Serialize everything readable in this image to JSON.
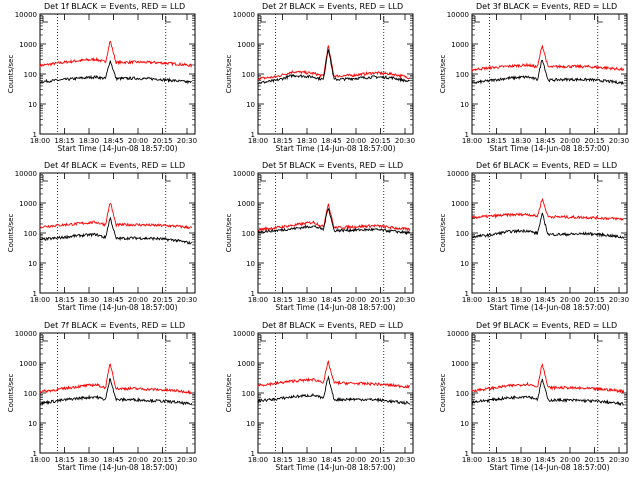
{
  "colors": {
    "black_series": "#000000",
    "red_series": "#ff0000",
    "background": "#ffffff",
    "axes": "#000000"
  },
  "chart_data": [
    {
      "type": "line",
      "title": "Det 1f BLACK = Events, RED = LLD",
      "xlabel": "Start Time (14-Jun-08 18:57:00)",
      "ylabel": "Counts/sec",
      "y_scale": "log",
      "ylim": [
        1,
        10000
      ],
      "xlim": [
        18.0,
        20.65
      ],
      "x_ticks": [
        "18:00",
        "18:15",
        "18:30",
        "18:45",
        "20:00",
        "20:15",
        "20:30"
      ],
      "y_ticks": [
        "1",
        "10",
        "100",
        "1000",
        "10000"
      ],
      "dotted_vlines": [
        18.3,
        20.15
      ],
      "grid": false,
      "series": [
        {
          "name": "BLACK",
          "color": "#000000",
          "x": [
            18.0,
            18.3,
            18.6,
            18.95,
            19.12,
            19.2,
            19.3,
            19.6,
            20.0,
            20.3,
            20.6
          ],
          "y": [
            55,
            62,
            70,
            80,
            70,
            290,
            70,
            72,
            68,
            60,
            52
          ]
        },
        {
          "name": "RED",
          "color": "#ff0000",
          "x": [
            18.0,
            18.3,
            18.6,
            18.95,
            19.12,
            19.2,
            19.3,
            19.6,
            20.0,
            20.3,
            20.6
          ],
          "y": [
            190,
            230,
            270,
            310,
            250,
            1300,
            240,
            250,
            240,
            220,
            190
          ]
        }
      ]
    },
    {
      "type": "line",
      "title": "Det 2f BLACK = Events, RED = LLD",
      "xlabel": "Start Time (14-Jun-08 18:57:00)",
      "ylabel": "Counts/sec",
      "y_scale": "log",
      "ylim": [
        1,
        10000
      ],
      "xlim": [
        18.0,
        20.65
      ],
      "x_ticks": [
        "18:00",
        "18:15",
        "18:30",
        "18:45",
        "20:00",
        "20:15",
        "20:30"
      ],
      "y_ticks": [
        "1",
        "10",
        "100",
        "1000",
        "10000"
      ],
      "dotted_vlines": [
        18.3,
        20.15
      ],
      "grid": false,
      "series": [
        {
          "name": "BLACK",
          "color": "#000000",
          "x": [
            18.0,
            18.3,
            18.6,
            18.95,
            19.12,
            19.2,
            19.3,
            19.6,
            20.0,
            20.3,
            20.6
          ],
          "y": [
            50,
            60,
            90,
            80,
            65,
            750,
            65,
            70,
            80,
            75,
            55
          ]
        },
        {
          "name": "RED",
          "color": "#ff0000",
          "x": [
            18.0,
            18.3,
            18.6,
            18.95,
            19.12,
            19.2,
            19.3,
            19.6,
            20.0,
            20.3,
            20.6
          ],
          "y": [
            70,
            80,
            120,
            105,
            85,
            900,
            85,
            90,
            110,
            100,
            75
          ]
        }
      ]
    },
    {
      "type": "line",
      "title": "Det 3f BLACK = Events, RED = LLD",
      "xlabel": "Start Time (14-Jun-08 18:57:00)",
      "ylabel": "Counts/sec",
      "y_scale": "log",
      "ylim": [
        1,
        10000
      ],
      "xlim": [
        18.0,
        20.65
      ],
      "x_ticks": [
        "18:00",
        "18:15",
        "18:30",
        "18:45",
        "20:00",
        "20:15",
        "20:30"
      ],
      "y_ticks": [
        "1",
        "10",
        "100",
        "1000",
        "10000"
      ],
      "dotted_vlines": [
        18.3,
        20.15
      ],
      "grid": false,
      "series": [
        {
          "name": "BLACK",
          "color": "#000000",
          "x": [
            18.0,
            18.3,
            18.6,
            18.95,
            19.12,
            19.2,
            19.3,
            19.6,
            20.0,
            20.3,
            20.6
          ],
          "y": [
            50,
            60,
            72,
            80,
            65,
            330,
            62,
            66,
            65,
            58,
            50
          ]
        },
        {
          "name": "RED",
          "color": "#ff0000",
          "x": [
            18.0,
            18.3,
            18.6,
            18.95,
            19.12,
            19.2,
            19.3,
            19.6,
            20.0,
            20.3,
            20.6
          ],
          "y": [
            140,
            160,
            180,
            200,
            170,
            950,
            170,
            180,
            175,
            160,
            140
          ]
        }
      ]
    },
    {
      "type": "line",
      "title": "Det 4f BLACK = Events, RED = LLD",
      "xlabel": "Start Time (14-Jun-08 18:57:00)",
      "ylabel": "Counts/sec",
      "y_scale": "log",
      "ylim": [
        1,
        10000
      ],
      "xlim": [
        18.0,
        20.65
      ],
      "x_ticks": [
        "18:00",
        "18:15",
        "18:30",
        "18:45",
        "20:00",
        "20:15",
        "20:30"
      ],
      "y_ticks": [
        "1",
        "10",
        "100",
        "1000",
        "10000"
      ],
      "dotted_vlines": [
        18.3,
        20.15
      ],
      "grid": false,
      "series": [
        {
          "name": "BLACK",
          "color": "#000000",
          "x": [
            18.0,
            18.3,
            18.6,
            18.95,
            19.12,
            19.2,
            19.3,
            19.6,
            20.0,
            20.3,
            20.6
          ],
          "y": [
            60,
            68,
            80,
            90,
            70,
            330,
            65,
            68,
            65,
            58,
            45
          ]
        },
        {
          "name": "RED",
          "color": "#ff0000",
          "x": [
            18.0,
            18.3,
            18.6,
            18.95,
            19.12,
            19.2,
            19.3,
            19.6,
            20.0,
            20.3,
            20.6
          ],
          "y": [
            160,
            180,
            200,
            230,
            190,
            1100,
            185,
            190,
            180,
            170,
            150
          ]
        }
      ]
    },
    {
      "type": "line",
      "title": "Det 5f BLACK = Events, RED = LLD",
      "xlabel": "Start Time (14-Jun-08 18:57:00)",
      "ylabel": "Counts/sec",
      "y_scale": "log",
      "ylim": [
        1,
        10000
      ],
      "xlim": [
        18.0,
        20.65
      ],
      "x_ticks": [
        "18:00",
        "18:15",
        "18:30",
        "18:45",
        "20:00",
        "20:15",
        "20:30"
      ],
      "y_ticks": [
        "1",
        "10",
        "100",
        "1000",
        "10000"
      ],
      "dotted_vlines": [
        18.3,
        20.15
      ],
      "grid": false,
      "series": [
        {
          "name": "BLACK",
          "color": "#000000",
          "x": [
            18.0,
            18.3,
            18.6,
            18.95,
            19.12,
            19.2,
            19.3,
            19.6,
            20.0,
            20.3,
            20.6
          ],
          "y": [
            110,
            120,
            140,
            170,
            130,
            750,
            120,
            125,
            130,
            115,
            100
          ]
        },
        {
          "name": "RED",
          "color": "#ff0000",
          "x": [
            18.0,
            18.3,
            18.6,
            18.95,
            19.12,
            19.2,
            19.3,
            19.6,
            20.0,
            20.3,
            20.6
          ],
          "y": [
            130,
            150,
            180,
            230,
            160,
            1000,
            150,
            160,
            175,
            150,
            130
          ]
        }
      ]
    },
    {
      "type": "line",
      "title": "Det 6f BLACK = Events, RED = LLD",
      "xlabel": "Start Time (14-Jun-08 18:57:00)",
      "ylabel": "Counts/sec",
      "y_scale": "log",
      "ylim": [
        1,
        10000
      ],
      "xlim": [
        18.0,
        20.65
      ],
      "x_ticks": [
        "18:00",
        "18:15",
        "18:30",
        "18:45",
        "20:00",
        "20:15",
        "20:30"
      ],
      "y_ticks": [
        "1",
        "10",
        "100",
        "1000",
        "10000"
      ],
      "dotted_vlines": [
        18.3,
        20.15
      ],
      "grid": false,
      "series": [
        {
          "name": "BLACK",
          "color": "#000000",
          "x": [
            18.0,
            18.3,
            18.6,
            18.95,
            19.12,
            19.2,
            19.3,
            19.6,
            20.0,
            20.3,
            20.6
          ],
          "y": [
            75,
            85,
            110,
            120,
            95,
            450,
            90,
            90,
            95,
            85,
            70
          ]
        },
        {
          "name": "RED",
          "color": "#ff0000",
          "x": [
            18.0,
            18.3,
            18.6,
            18.95,
            19.12,
            19.2,
            19.3,
            19.6,
            20.0,
            20.3,
            20.6
          ],
          "y": [
            330,
            360,
            400,
            420,
            360,
            1400,
            350,
            340,
            330,
            310,
            290
          ]
        }
      ]
    },
    {
      "type": "line",
      "title": "Det 7f BLACK = Events, RED = LLD",
      "xlabel": "Start Time (14-Jun-08 18:57:00)",
      "ylabel": "Counts/sec",
      "y_scale": "log",
      "ylim": [
        1,
        10000
      ],
      "xlim": [
        18.0,
        20.65
      ],
      "x_ticks": [
        "18:00",
        "18:15",
        "18:30",
        "18:45",
        "20:00",
        "20:15",
        "20:30"
      ],
      "y_ticks": [
        "1",
        "10",
        "100",
        "1000",
        "10000"
      ],
      "dotted_vlines": [
        18.3,
        20.15
      ],
      "grid": false,
      "series": [
        {
          "name": "BLACK",
          "color": "#000000",
          "x": [
            18.0,
            18.3,
            18.6,
            18.95,
            19.12,
            19.2,
            19.3,
            19.6,
            20.0,
            20.3,
            20.6
          ],
          "y": [
            45,
            55,
            65,
            75,
            60,
            320,
            60,
            60,
            55,
            50,
            42
          ]
        },
        {
          "name": "RED",
          "color": "#ff0000",
          "x": [
            18.0,
            18.3,
            18.6,
            18.95,
            19.12,
            19.2,
            19.3,
            19.6,
            20.0,
            20.3,
            20.6
          ],
          "y": [
            110,
            130,
            160,
            190,
            150,
            1000,
            140,
            140,
            130,
            120,
            105
          ]
        }
      ]
    },
    {
      "type": "line",
      "title": "Det 8f BLACK = Events, RED = LLD",
      "xlabel": "Start Time (14-Jun-08 18:57:00)",
      "ylabel": "Counts/sec",
      "y_scale": "log",
      "ylim": [
        1,
        10000
      ],
      "xlim": [
        18.0,
        20.65
      ],
      "x_ticks": [
        "18:00",
        "18:15",
        "18:30",
        "18:45",
        "20:00",
        "20:15",
        "20:30"
      ],
      "y_ticks": [
        "1",
        "10",
        "100",
        "1000",
        "10000"
      ],
      "dotted_vlines": [
        18.3,
        20.15
      ],
      "grid": false,
      "series": [
        {
          "name": "BLACK",
          "color": "#000000",
          "x": [
            18.0,
            18.3,
            18.6,
            18.95,
            19.12,
            19.2,
            19.3,
            19.6,
            20.0,
            20.3,
            20.6
          ],
          "y": [
            55,
            62,
            75,
            85,
            65,
            350,
            60,
            62,
            60,
            52,
            45
          ]
        },
        {
          "name": "RED",
          "color": "#ff0000",
          "x": [
            18.0,
            18.3,
            18.6,
            18.95,
            19.12,
            19.2,
            19.3,
            19.6,
            20.0,
            20.3,
            20.6
          ],
          "y": [
            180,
            210,
            250,
            280,
            230,
            1100,
            220,
            210,
            200,
            180,
            160
          ]
        }
      ]
    },
    {
      "type": "line",
      "title": "Det 9f BLACK = Events, RED = LLD",
      "xlabel": "Start Time (14-Jun-08 18:57:00)",
      "ylabel": "Counts/sec",
      "y_scale": "log",
      "ylim": [
        1,
        10000
      ],
      "xlim": [
        18.0,
        20.65
      ],
      "x_ticks": [
        "18:00",
        "18:15",
        "18:30",
        "18:45",
        "20:00",
        "20:15",
        "20:30"
      ],
      "y_ticks": [
        "1",
        "10",
        "100",
        "1000",
        "10000"
      ],
      "dotted_vlines": [
        18.3,
        20.15
      ],
      "grid": false,
      "series": [
        {
          "name": "BLACK",
          "color": "#000000",
          "x": [
            18.0,
            18.3,
            18.6,
            18.95,
            19.12,
            19.2,
            19.3,
            19.6,
            20.0,
            20.3,
            20.6
          ],
          "y": [
            50,
            58,
            68,
            78,
            62,
            300,
            58,
            58,
            55,
            50,
            42
          ]
        },
        {
          "name": "RED",
          "color": "#ff0000",
          "x": [
            18.0,
            18.3,
            18.6,
            18.95,
            19.12,
            19.2,
            19.3,
            19.6,
            20.0,
            20.3,
            20.6
          ],
          "y": [
            120,
            140,
            170,
            200,
            160,
            1000,
            150,
            150,
            140,
            130,
            115
          ]
        }
      ]
    }
  ]
}
